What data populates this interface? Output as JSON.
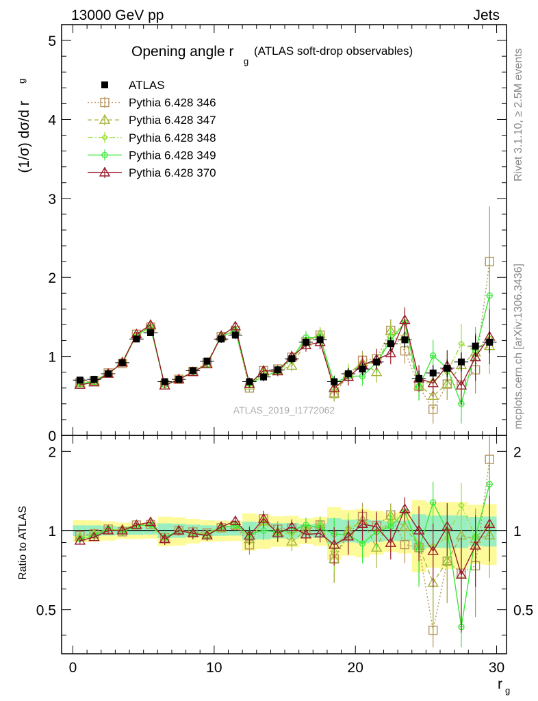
{
  "header": {
    "left": "13000 GeV pp",
    "right": "Jets"
  },
  "title": {
    "main": "Opening angle r",
    "sub": "g",
    "suffix": "(ATLAS soft-drop observables)"
  },
  "analysis_id": "ATLAS_2019_I1772062",
  "side_text": {
    "rivet": "Rivet 3.1.10, ≥ 2.5M events",
    "mcplots": "mcplots.cern.ch [arXiv:1306.3436]"
  },
  "axes": {
    "ylabel_top": "(1/σ) dσ/d r",
    "ylabel_top_sub": "g",
    "ylabel_bottom": "Ratio to ATLAS",
    "xlabel": "r",
    "xlabel_sub": "g",
    "x_ticks": [
      "0",
      "10",
      "20",
      "30"
    ],
    "y_ticks_top": [
      "0",
      "1",
      "2",
      "3",
      "4",
      "5"
    ],
    "y_ticks_bottom": [
      "0.5",
      "1",
      "2"
    ]
  },
  "colors": {
    "atlas": "#000000",
    "p346": "#b5915a",
    "p347": "#a6b33a",
    "p348": "#9ae03a",
    "p349": "#3ae83a",
    "p370": "#9a1a2a",
    "band_yellow": "#fdfa9a",
    "band_green": "#9aeec0"
  },
  "chart_data": {
    "type": "line",
    "xlabel": "r_g",
    "ylabel": "(1/σ) dσ/d r_g",
    "xlim": [
      -0.8,
      30.7
    ],
    "ylim": [
      0,
      5.2
    ],
    "ratio_ylim": [
      0.34,
      2.3
    ],
    "ratio_scale": "log",
    "legend_position": "top-left",
    "x": [
      0.5,
      1.5,
      2.5,
      3.5,
      4.5,
      5.5,
      6.5,
      7.5,
      8.5,
      9.5,
      10.5,
      11.5,
      12.5,
      13.5,
      14.5,
      15.5,
      16.5,
      17.5,
      18.5,
      19.5,
      20.5,
      21.5,
      22.5,
      23.5,
      24.5,
      25.5,
      26.5,
      27.5,
      28.5,
      29.5
    ],
    "series": [
      {
        "name": "ATLAS",
        "marker": "filled-square",
        "line": "none",
        "values": [
          0.7,
          0.71,
          0.78,
          0.92,
          1.22,
          1.3,
          0.68,
          0.71,
          0.82,
          0.94,
          1.22,
          1.27,
          0.68,
          0.74,
          0.83,
          0.97,
          1.18,
          1.21,
          0.68,
          0.78,
          0.84,
          0.93,
          1.16,
          1.21,
          0.72,
          0.79,
          0.85,
          0.93,
          1.13,
          1.18
        ],
        "errors": [
          0.03,
          0.03,
          0.03,
          0.03,
          0.04,
          0.04,
          0.04,
          0.04,
          0.04,
          0.04,
          0.05,
          0.05,
          0.05,
          0.05,
          0.05,
          0.06,
          0.06,
          0.07,
          0.07,
          0.07,
          0.08,
          0.08,
          0.09,
          0.1,
          0.1,
          0.1,
          0.11,
          0.12,
          0.13,
          0.14
        ]
      },
      {
        "name": "Pythia 6.428 346",
        "marker": "open-square",
        "line": "dotted",
        "values": [
          0.67,
          0.69,
          0.79,
          0.91,
          1.28,
          1.37,
          0.64,
          0.71,
          0.81,
          0.92,
          1.25,
          1.33,
          0.6,
          0.82,
          0.84,
          0.99,
          1.19,
          1.27,
          0.53,
          0.75,
          0.95,
          0.97,
          1.33,
          1.07,
          0.62,
          0.33,
          0.65,
          0.64,
          0.83,
          2.2
        ],
        "errors": [
          0.02,
          0.02,
          0.02,
          0.03,
          0.03,
          0.03,
          0.03,
          0.03,
          0.04,
          0.04,
          0.04,
          0.05,
          0.05,
          0.06,
          0.06,
          0.07,
          0.08,
          0.09,
          0.1,
          0.11,
          0.12,
          0.13,
          0.14,
          0.16,
          0.17,
          0.18,
          0.2,
          0.25,
          0.3,
          0.7
        ]
      },
      {
        "name": "Pythia 6.428 347",
        "marker": "open-triangle",
        "line": "dashed",
        "values": [
          0.66,
          0.69,
          0.78,
          0.93,
          1.28,
          1.39,
          0.63,
          0.71,
          0.8,
          0.91,
          1.25,
          1.33,
          0.63,
          0.8,
          0.82,
          0.88,
          1.18,
          1.28,
          0.53,
          0.78,
          0.92,
          0.8,
          1.32,
          1.25,
          0.63,
          0.5,
          0.65,
          0.89,
          1.05,
          1.13
        ],
        "errors": [
          0.02,
          0.02,
          0.02,
          0.03,
          0.03,
          0.03,
          0.03,
          0.03,
          0.04,
          0.04,
          0.04,
          0.05,
          0.05,
          0.06,
          0.06,
          0.07,
          0.08,
          0.09,
          0.1,
          0.11,
          0.12,
          0.13,
          0.14,
          0.16,
          0.17,
          0.18,
          0.2,
          0.25,
          0.3,
          0.35
        ]
      },
      {
        "name": "Pythia 6.428 348",
        "marker": "open-diamond",
        "line": "dashdot",
        "values": [
          0.66,
          0.69,
          0.79,
          0.92,
          1.27,
          1.36,
          0.63,
          0.72,
          0.8,
          0.92,
          1.26,
          1.32,
          0.64,
          0.79,
          0.82,
          0.94,
          1.21,
          1.27,
          0.57,
          0.8,
          0.9,
          0.92,
          1.25,
          1.42,
          0.63,
          0.69,
          0.8,
          1.16,
          1.07,
          1.23
        ],
        "errors": [
          0.02,
          0.02,
          0.02,
          0.03,
          0.03,
          0.03,
          0.03,
          0.03,
          0.04,
          0.04,
          0.04,
          0.05,
          0.05,
          0.06,
          0.06,
          0.07,
          0.08,
          0.09,
          0.1,
          0.11,
          0.12,
          0.13,
          0.14,
          0.16,
          0.17,
          0.18,
          0.2,
          0.25,
          0.3,
          0.4
        ]
      },
      {
        "name": "Pythia 6.428 349",
        "marker": "open-circle-cross",
        "line": "solid",
        "values": [
          0.65,
          0.68,
          0.79,
          0.91,
          1.27,
          1.37,
          0.64,
          0.71,
          0.8,
          0.9,
          1.25,
          1.33,
          0.66,
          0.74,
          0.82,
          0.97,
          1.24,
          1.24,
          0.66,
          0.75,
          0.75,
          0.92,
          1.2,
          1.43,
          0.61,
          1.01,
          0.85,
          0.4,
          1.07,
          1.77
        ],
        "errors": [
          0.02,
          0.02,
          0.02,
          0.03,
          0.03,
          0.03,
          0.03,
          0.03,
          0.04,
          0.04,
          0.04,
          0.05,
          0.05,
          0.06,
          0.06,
          0.07,
          0.08,
          0.09,
          0.1,
          0.11,
          0.12,
          0.13,
          0.14,
          0.16,
          0.17,
          0.2,
          0.22,
          0.25,
          0.3,
          0.55
        ]
      },
      {
        "name": "Pythia 6.428 370",
        "marker": "open-triangle",
        "line": "solid",
        "values": [
          0.64,
          0.67,
          0.78,
          0.92,
          1.28,
          1.4,
          0.63,
          0.71,
          0.8,
          0.9,
          1.26,
          1.38,
          0.65,
          0.82,
          0.81,
          1.0,
          1.14,
          1.18,
          0.6,
          0.74,
          0.89,
          0.96,
          1.04,
          1.46,
          0.72,
          0.66,
          0.88,
          0.63,
          0.99,
          1.25
        ],
        "errors": [
          0.02,
          0.02,
          0.02,
          0.03,
          0.03,
          0.03,
          0.03,
          0.03,
          0.04,
          0.04,
          0.04,
          0.05,
          0.05,
          0.06,
          0.06,
          0.07,
          0.08,
          0.09,
          0.1,
          0.11,
          0.12,
          0.13,
          0.14,
          0.16,
          0.17,
          0.18,
          0.2,
          0.25,
          0.3,
          0.35
        ]
      }
    ]
  }
}
